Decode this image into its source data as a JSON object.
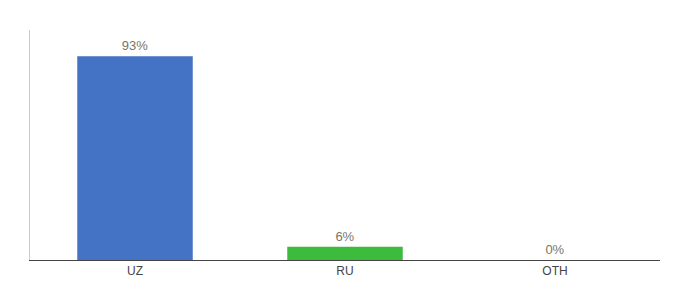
{
  "chart_data": {
    "type": "bar",
    "categories": [
      "UZ",
      "RU",
      "OTH"
    ],
    "values": [
      93,
      6,
      0
    ],
    "value_labels": [
      "93%",
      "6%",
      "0%"
    ],
    "colors": [
      "#4472c4",
      "#3dbb3d",
      "#4472c4"
    ],
    "ylim": [
      0,
      105
    ],
    "data_labels": true,
    "tick_labels": "x",
    "grid": false
  }
}
